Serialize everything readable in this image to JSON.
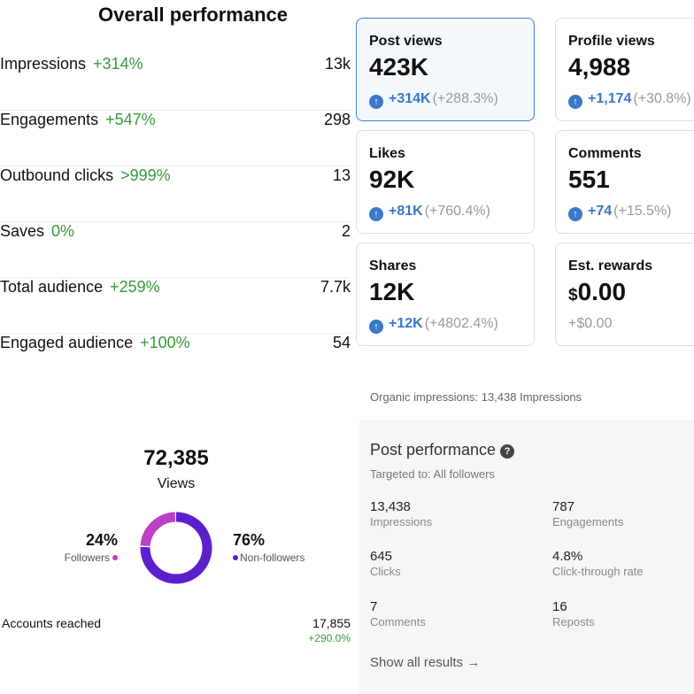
{
  "overall": {
    "title": "Overall performance",
    "rows": [
      {
        "name": "Impressions",
        "change": "+314%",
        "value": "13k"
      },
      {
        "name": "Engagements",
        "change": "+547%",
        "value": "298"
      },
      {
        "name": "Outbound clicks",
        "change": ">999%",
        "value": "13"
      },
      {
        "name": "Saves",
        "change": "0%",
        "value": "2"
      },
      {
        "name": "Total audience",
        "change": "+259%",
        "value": "7.7k"
      },
      {
        "name": "Engaged audience",
        "change": "+100%",
        "value": "54"
      }
    ]
  },
  "cards": [
    {
      "label": "Post views",
      "value": "423K",
      "delta_abs": "+314K",
      "delta_pct": "(+288.3%)"
    },
    {
      "label": "Profile views",
      "value": "4,988",
      "delta_abs": "+1,174",
      "delta_pct": "(+30.8%)"
    },
    {
      "label": "Likes",
      "value": "92K",
      "delta_abs": "+81K",
      "delta_pct": "(+760.4%)"
    },
    {
      "label": "Comments",
      "value": "551",
      "delta_abs": "+74",
      "delta_pct": "(+15.5%)"
    },
    {
      "label": "Shares",
      "value": "12K",
      "delta_abs": "+12K",
      "delta_pct": "(+4802.4%)"
    },
    {
      "label": "Est. rewards",
      "currency": "$",
      "value": "0.00",
      "delta_plain": "+$0.00"
    }
  ],
  "arrow_glyph": "↑",
  "views": {
    "total": "72,385",
    "label": "Views",
    "followers": {
      "pct": "24%",
      "label": "Followers",
      "fraction": 0.24,
      "color": "#bd3fc7"
    },
    "non_followers": {
      "pct": "76%",
      "label": "Non-followers",
      "fraction": 0.76,
      "color": "#5a20cc"
    },
    "accounts_reached": {
      "label": "Accounts reached",
      "value": "17,855",
      "delta": "+290.0%"
    }
  },
  "organic": "Organic impressions: 13,438 Impressions",
  "post_performance": {
    "title": "Post performance",
    "help_glyph": "?",
    "targeted": "Targeted to: All followers",
    "stats": [
      {
        "value": "13,438",
        "label": "Impressions"
      },
      {
        "value": "787",
        "label": "Engagements"
      },
      {
        "value": "645",
        "label": "Clicks"
      },
      {
        "value": "4.8%",
        "label": "Click-through rate"
      },
      {
        "value": "7",
        "label": "Comments"
      },
      {
        "value": "16",
        "label": "Reposts"
      }
    ],
    "show_all": "Show all results →"
  },
  "colors": {
    "accent_blue": "#3a78c8",
    "positive_green": "#3a9a3a"
  }
}
